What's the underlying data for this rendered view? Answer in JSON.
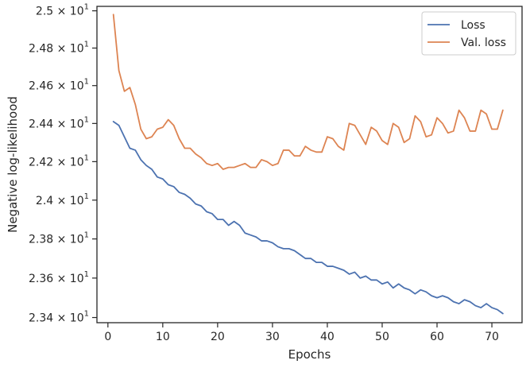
{
  "chart_data": {
    "type": "line",
    "xlabel": "Epochs",
    "ylabel": "Negative log-likelihood",
    "xlim": [
      -2,
      75.5
    ],
    "ylim": [
      23.374,
      25.024
    ],
    "yscale": "log",
    "grid": false,
    "legend_position": "top-right",
    "x_ticks": [
      0,
      10,
      20,
      30,
      40,
      50,
      60,
      70
    ],
    "x_tick_labels": [
      "0",
      "10",
      "20",
      "30",
      "40",
      "50",
      "60",
      "70"
    ],
    "y_ticks": [
      23.4,
      23.6,
      23.8,
      24.0,
      24.2,
      24.4,
      24.6,
      24.8,
      25.0
    ],
    "y_tick_labels": [
      {
        "mantissa": "2.34",
        "times": "×",
        "base": "10",
        "exp": "1"
      },
      {
        "mantissa": "2.36",
        "times": "×",
        "base": "10",
        "exp": "1"
      },
      {
        "mantissa": "2.38",
        "times": "×",
        "base": "10",
        "exp": "1"
      },
      {
        "mantissa": "2.4",
        "times": "×",
        "base": "10",
        "exp": "1"
      },
      {
        "mantissa": "2.42",
        "times": "×",
        "base": "10",
        "exp": "1"
      },
      {
        "mantissa": "2.44",
        "times": "×",
        "base": "10",
        "exp": "1"
      },
      {
        "mantissa": "2.46",
        "times": "×",
        "base": "10",
        "exp": "1"
      },
      {
        "mantissa": "2.48",
        "times": "×",
        "base": "10",
        "exp": "1"
      },
      {
        "mantissa": "2.5",
        "times": "×",
        "base": "10",
        "exp": "1"
      }
    ],
    "x": [
      1,
      2,
      3,
      4,
      5,
      6,
      7,
      8,
      9,
      10,
      11,
      12,
      13,
      14,
      15,
      16,
      17,
      18,
      19,
      20,
      21,
      22,
      23,
      24,
      25,
      26,
      27,
      28,
      29,
      30,
      31,
      32,
      33,
      34,
      35,
      36,
      37,
      38,
      39,
      40,
      41,
      42,
      43,
      44,
      45,
      46,
      47,
      48,
      49,
      50,
      51,
      52,
      53,
      54,
      55,
      56,
      57,
      58,
      59,
      60,
      61,
      62,
      63,
      64,
      65,
      66,
      67,
      68,
      69,
      70,
      71,
      72
    ],
    "series": [
      {
        "name": "Loss",
        "color": "#4c72b0",
        "values": [
          24.41,
          24.39,
          24.33,
          24.27,
          24.26,
          24.21,
          24.18,
          24.16,
          24.12,
          24.11,
          24.08,
          24.07,
          24.04,
          24.03,
          24.01,
          23.98,
          23.97,
          23.94,
          23.93,
          23.9,
          23.9,
          23.87,
          23.89,
          23.87,
          23.83,
          23.82,
          23.81,
          23.79,
          23.79,
          23.78,
          23.76,
          23.75,
          23.75,
          23.74,
          23.72,
          23.7,
          23.7,
          23.68,
          23.68,
          23.66,
          23.66,
          23.65,
          23.64,
          23.62,
          23.63,
          23.6,
          23.61,
          23.59,
          23.59,
          23.57,
          23.58,
          23.55,
          23.57,
          23.55,
          23.54,
          23.52,
          23.54,
          23.53,
          23.51,
          23.5,
          23.51,
          23.5,
          23.48,
          23.47,
          23.49,
          23.48,
          23.46,
          23.45,
          23.47,
          23.45,
          23.44,
          23.42
        ]
      },
      {
        "name": "Val. loss",
        "color": "#dd8452",
        "values": [
          24.98,
          24.68,
          24.57,
          24.59,
          24.5,
          24.37,
          24.32,
          24.33,
          24.37,
          24.38,
          24.42,
          24.39,
          24.32,
          24.27,
          24.27,
          24.24,
          24.22,
          24.19,
          24.18,
          24.19,
          24.16,
          24.17,
          24.17,
          24.18,
          24.19,
          24.17,
          24.17,
          24.21,
          24.2,
          24.18,
          24.19,
          24.26,
          24.26,
          24.23,
          24.23,
          24.28,
          24.26,
          24.25,
          24.25,
          24.33,
          24.32,
          24.28,
          24.26,
          24.4,
          24.39,
          24.34,
          24.29,
          24.38,
          24.36,
          24.31,
          24.29,
          24.4,
          24.38,
          24.3,
          24.32,
          24.44,
          24.41,
          24.33,
          24.34,
          24.43,
          24.4,
          24.35,
          24.36,
          24.47,
          24.43,
          24.36,
          24.36,
          24.47,
          24.45,
          24.37,
          24.37,
          24.47
        ]
      }
    ]
  }
}
